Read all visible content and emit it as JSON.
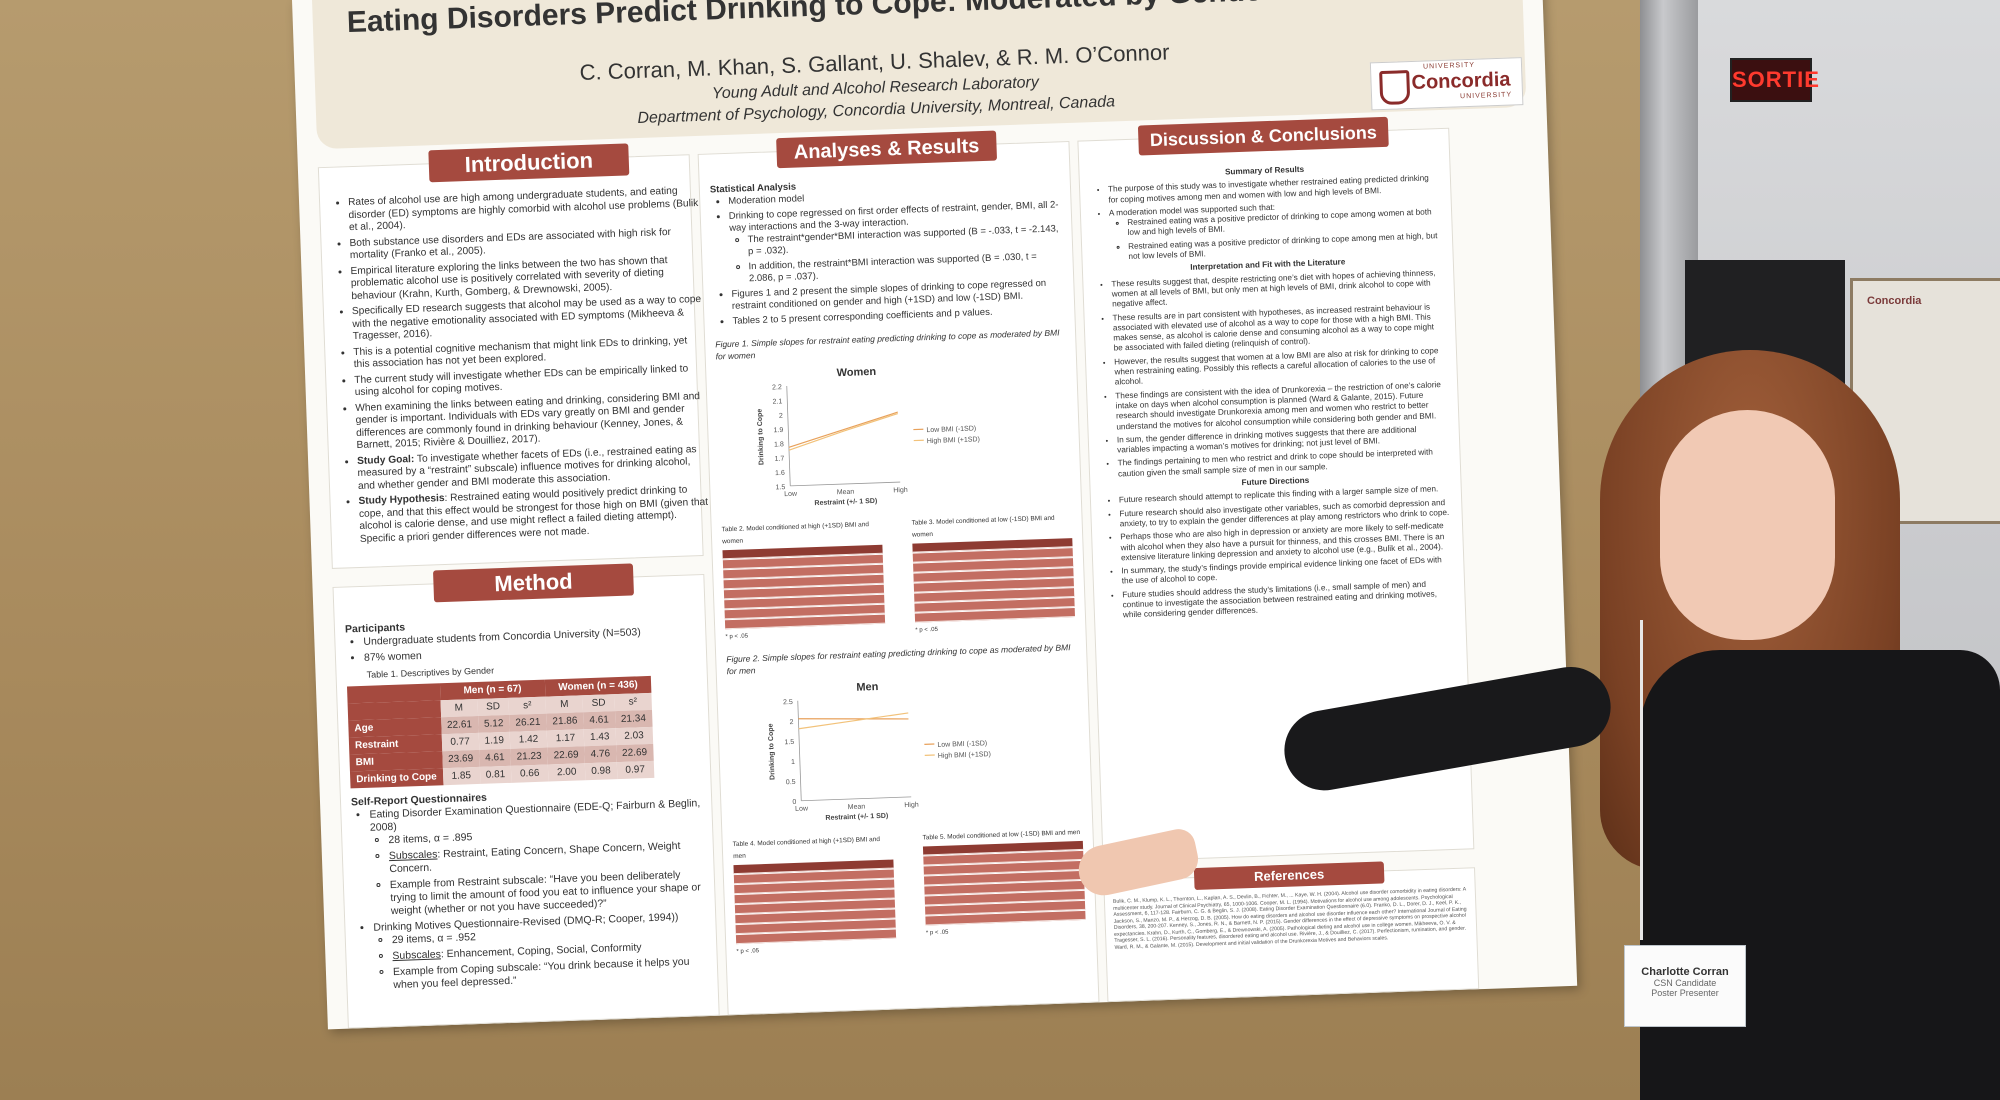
{
  "scene": {
    "exit_sign": "SORTIE",
    "badge": {
      "name": "Charlotte Corran",
      "line1": "CSN Candidate",
      "line2": "Poster Presenter"
    },
    "background_poster_logo": "Concordia"
  },
  "poster": {
    "title": "Eating Disorders Predict Drinking to Cope: Moderated by Gender and BMI",
    "authors": "C. Corran, M. Khan, S. Gallant, U. Shalev, & R. M. O’Connor",
    "lab": "Young Adult and Alcohol Research Laboratory",
    "department": "Department of Psychology, Concordia University, Montreal, Canada",
    "logo": {
      "top": "UNIVERSITY",
      "name": "Concordia",
      "bottom": "UNIVERSITY"
    },
    "introduction": {
      "heading": "Introduction",
      "bullets": [
        "Rates of alcohol use are high among undergraduate students, and eating disorder (ED) symptoms are highly comorbid with alcohol use problems (Bulik et al., 2004).",
        "Both substance use disorders and EDs are associated with high risk for mortality (Franko et al., 2005).",
        "Empirical literature exploring the links between the two has shown that problematic alcohol use is positively correlated with severity of dieting behaviour (Krahn, Kurth, Gomberg, & Drewnowski, 2005).",
        "Specifically ED research suggests that alcohol may be used as a way to cope with the negative emotionality associated with ED symptoms (Mikheeva & Tragesser, 2016).",
        "This is a potential cognitive mechanism that might link EDs to drinking, yet this association has not yet been explored.",
        "The current study will investigate whether EDs can be empirically linked to using alcohol for coping motives.",
        "When examining the links between eating and drinking, considering BMI and gender is important. Individuals with EDs vary greatly on BMI and gender differences are commonly found in drinking behaviour (Kenney, Jones, & Barnett, 2015; Rivière & Douilliez, 2017)."
      ],
      "goal_label": "Study Goal:",
      "goal_text": " To investigate whether facets of EDs (i.e., restrained eating as measured by a “restraint” subscale) influence motives for drinking alcohol, and whether gender and BMI moderate this association.",
      "hyp_label": "Study Hypothesis",
      "hyp_text": ": Restrained eating would positively predict drinking to cope, and that this effect would be strongest for those high on BMI (given that alcohol is calorie dense, and use might reflect a failed dieting attempt). Specific a priori gender differences were not made."
    },
    "method": {
      "heading": "Method",
      "participants_label": "Participants",
      "participants": [
        "Undergraduate students from Concordia University (N=503)",
        "87% women"
      ],
      "table_caption": "Table 1. Descriptives by Gender",
      "table": {
        "groups": [
          "Men (n = 67)",
          "Women (n = 436)"
        ],
        "cols": [
          "M",
          "SD",
          "s²",
          "M",
          "SD",
          "s²"
        ],
        "rows": [
          {
            "label": "Age",
            "values": [
              "22.61",
              "5.12",
              "26.21",
              "21.86",
              "4.61",
              "21.34"
            ]
          },
          {
            "label": "Restraint",
            "values": [
              "0.77",
              "1.19",
              "1.42",
              "1.17",
              "1.43",
              "2.03"
            ]
          },
          {
            "label": "BMI",
            "values": [
              "23.69",
              "4.61",
              "21.23",
              "22.69",
              "4.76",
              "22.69"
            ]
          },
          {
            "label": "Drinking to Cope",
            "values": [
              "1.85",
              "0.81",
              "0.66",
              "2.00",
              "0.98",
              "0.97"
            ]
          }
        ]
      },
      "questionnaires_label": "Self-Report Questionnaires",
      "ede_q": "Eating Disorder Examination Questionnaire (EDE-Q; Fairburn & Beglin, 2008)",
      "ede_items": "28 items, α = .895",
      "ede_subscales_label": "Subscales",
      "ede_subscales": ": Restraint, Eating Concern, Shape Concern, Weight Concern.",
      "ede_example": "Example from Restraint subscale: “Have you been deliberately trying to limit the amount of  food you eat to influence your shape or weight (whether or not you have succeeded)?”",
      "dmq": "Drinking Motives Questionnaire-Revised (DMQ-R; Cooper, 1994))",
      "dmq_items": "29 items, α = .952",
      "dmq_subscales_label": "Subscales",
      "dmq_subscales": ": Enhancement, Coping, Social, Conformity",
      "dmq_example": "Example from Coping subscale: “You drink because it helps you when you feel depressed.”"
    },
    "analyses": {
      "heading": "Analyses & Results",
      "stat_label": "Statistical Analysis",
      "b1": "Moderation model",
      "b2": "Drinking to cope regressed on first order effects of restraint, gender, BMI, all 2-way interactions and the 3-way interaction.",
      "b2a": "The restraint*gender*BMI interaction was supported (B = -.033, t = -2.143, p = .032).",
      "b2b": "In addition, the restraint*BMI interaction was supported (B = .030, t = 2.086, p = .037).",
      "b3": "Figures 1 and 2 present the simple slopes of drinking to cope regressed on restraint conditioned on gender and high (+1SD) and low (-1SD) BMI.",
      "b4": "Tables 2 to 5 present corresponding coefficients and p values.",
      "fig1_caption": "Figure 1. Simple slopes for restraint eating predicting drinking to cope as moderated by BMI for women",
      "fig2_caption": "Figure 2. Simple slopes for restraint eating predicting drinking to cope as moderated by BMI for men",
      "table2_caption": "Table 2. Model conditioned at high (+1SD) BMI and women",
      "table3_caption": "Table 3. Model conditioned at low (-1SD) BMI and women",
      "table4_caption": "Table 4. Model conditioned at high (+1SD) BMI and men",
      "table5_caption": "Table 5. Model conditioned at low (-1SD) BMI and men",
      "p_note": "* p < .05"
    },
    "discussion": {
      "heading": "Discussion & Conclusions",
      "summary_head": "Summary of Results",
      "s1": "The purpose of this study was to investigate whether restrained eating predicted drinking for coping motives among men and women with low and high levels of BMI.",
      "s2": "A moderation model was supported such that:",
      "s2a": "Restrained eating was a positive predictor of drinking to cope among women at both low and high levels of BMI.",
      "s2b": "Restrained eating was a positive predictor of drinking to cope among men at high, but not low levels of BMI.",
      "interp_head": "Interpretation and Fit with the Literature",
      "i1": "These results suggest that, despite restricting one’s diet with hopes of achieving thinness, women at all levels of BMI, but only men at high levels of BMI, drink alcohol to cope with negative affect.",
      "i2": "These results are in part consistent with hypotheses, as increased restraint behaviour is associated with elevated use of alcohol as a way to cope for those with a high BMI. This makes sense, as alcohol is calorie dense and consuming alcohol as a way to cope might be associated with failed dieting (relinquish of control).",
      "i3": "However, the results suggest that women at a low BMI are also at risk for drinking to cope when restraining eating. Possibly this reflects a careful allocation of calories to the use of alcohol.",
      "i4": "These findings are consistent with the idea of Drunkorexia – the restriction of one’s calorie intake on days when alcohol consumption is planned (Ward & Galante, 2015). Future research should investigate Drunkorexia among men and women who restrict to better understand the motives for alcohol consumption while considering both gender and BMI.",
      "i5": "In sum, the gender difference in drinking motives suggests that there are additional variables impacting a woman’s motives for drinking; not just level of BMI.",
      "i6": "The findings pertaining to men who restrict and drink to cope should be interpreted with caution given the small sample size of men in our sample.",
      "future_head": "Future Directions",
      "f1": "Future research should attempt to replicate this finding with a larger sample size of men.",
      "f2": "Future research should also investigate other variables, such as comorbid depression and anxiety, to try to explain the gender differences at play among restrictors who drink to cope.",
      "f3": "Perhaps those who are also high in depression or anxiety are more likely to self-medicate with alcohol when they also have a pursuit for thinness, and this crosses BMI. There is an extensive literature linking depression and anxiety to alcohol use (e.g., Bulik et al., 2004).",
      "f4": "In summary, the study’s findings provide empirical evidence linking one facet of EDs with the use of alcohol to cope.",
      "f5": "Future studies should address the study’s limitations (i.e., small sample of men) and continue to investigate the association between restrained eating and drinking motives, while considering gender differences.",
      "refs_head": "References",
      "refs_text": "Bulik, C. M., Klump, K. L., Thornton, L., Kaplan, A. S., Devlin, B., Fichter, M., ... Kaye, W. H. (2004). Alcohol use disorder comorbidity in eating disorders: A multicenter study. Journal of Clinical Psychiatry, 65, 1000-1006. Cooper, M. L. (1994). Motivations for alcohol use among adolescents. Psychological Assessment, 6, 117-128. Fairburn, C. G. & Beglin, S. J. (2008). Eating Disorder Examination Questionnaire (6.0). Franko, D. L., Dorer, D. J., Keel, P. K., Jackson, S., Manzo, M. P., & Herzog, D. B. (2005). How do eating disorders and alcohol use disorder influence each other? International Journal of Eating Disorders, 38, 200-207. Kenney, S., Jones, R. N., & Barnett, N. P. (2015). Gender differences in the effect of depressive symptoms on prospective alcohol expectancies. Krahn, D., Kurth, C., Gomberg, E., & Drewnowski, A. (2005). Pathological dieting and alcohol use in college women. Mikheeva, O. V. & Tragesser, S. L. (2016). Personality features, disordered eating and alcohol use. Rivière, J., & Douilliez, C. (2017). Perfectionism, rumination, and gender. Ward, R. M., & Galante, M. (2015). Development and initial validation of the Drunkorexia Motives and Behaviors scales."
    }
  },
  "chart_data": [
    {
      "type": "line",
      "title": "Women",
      "xlabel": "Restraint (+/- 1 SD)",
      "ylabel": "Drinking to Cope",
      "categories": [
        "Low",
        "Mean",
        "High"
      ],
      "ylim": [
        1.5,
        2.2
      ],
      "yticks": [
        "2.2",
        "2.1",
        "2",
        "1.9",
        "1.8",
        "1.7",
        "1.6",
        "1.5"
      ],
      "series": [
        {
          "name": "Low BMI (-1SD)",
          "values": [
            1.77,
            1.88,
            1.99
          ],
          "color": "#e8a15b"
        },
        {
          "name": "High BMI (+1SD)",
          "values": [
            1.75,
            1.87,
            1.98
          ],
          "color": "#f2c27a"
        }
      ]
    },
    {
      "type": "line",
      "title": "Men",
      "xlabel": "Restraint (+/- 1 SD)",
      "ylabel": "Drinking to Cope",
      "categories": [
        "Low",
        "Mean",
        "High"
      ],
      "ylim": [
        0,
        2.5
      ],
      "yticks": [
        "2.5",
        "2",
        "1.5",
        "1",
        "0.5",
        "0"
      ],
      "series": [
        {
          "name": "Low BMI (-1SD)",
          "values": [
            2.05,
            2.0,
            1.95
          ],
          "color": "#e8a15b"
        },
        {
          "name": "High BMI (+1SD)",
          "values": [
            1.8,
            1.95,
            2.1
          ],
          "color": "#f2c27a"
        }
      ]
    }
  ]
}
